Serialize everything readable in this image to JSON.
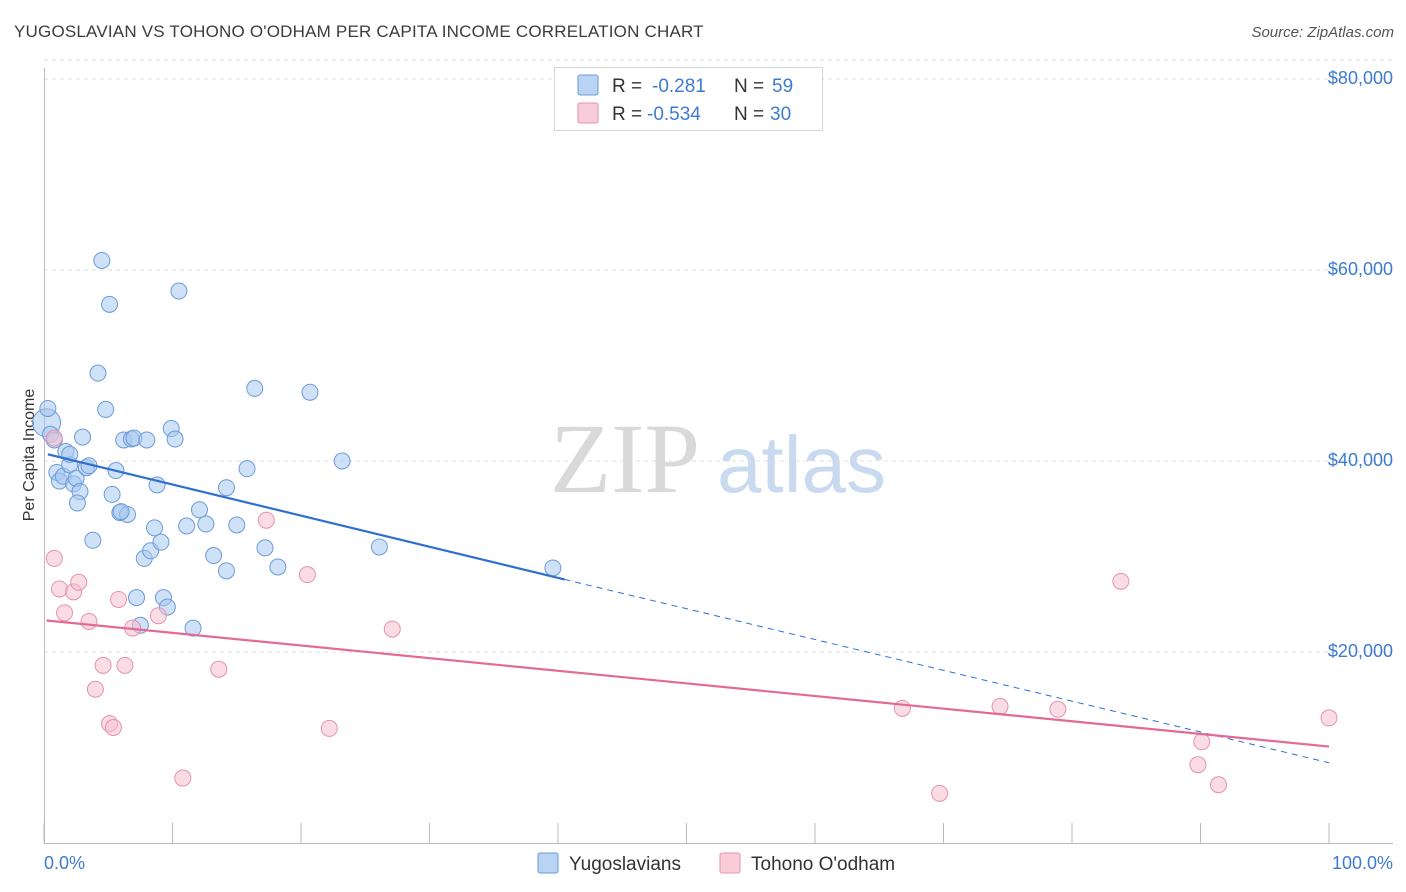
{
  "title": "YUGOSLAVIAN VS TOHONO O'ODHAM PER CAPITA INCOME CORRELATION CHART",
  "source": "Source: ZipAtlas.com",
  "watermark": {
    "zip": "ZIP",
    "atlas": "atlas"
  },
  "colors": {
    "blue_fill": "#a8c8f0",
    "blue_stroke": "#6b9bd8",
    "blue_line": "#2f6fce",
    "pink_fill": "#f6c0d0",
    "pink_stroke": "#e592ae",
    "pink_line": "#e36a95",
    "axis_label": "#3d7bd0",
    "grid": "#dddddd"
  },
  "legend": {
    "r_label": "R =",
    "n_label": "N =",
    "rows": [
      {
        "series": "Yugoslavians",
        "r": "-0.281",
        "n": "59"
      },
      {
        "series": "Tohono O'odham",
        "r": "-0.534",
        "n": "30"
      }
    ]
  },
  "chart_data": {
    "type": "scatter",
    "title": "YUGOSLAVIAN VS TOHONO O'ODHAM PER CAPITA INCOME CORRELATION CHART",
    "xlabel": "",
    "ylabel": "Per Capita Income",
    "xlim": [
      0,
      100
    ],
    "ylim": [
      0,
      82000
    ],
    "x_tick_labels": [
      "0.0%",
      "100.0%"
    ],
    "y_ticks": [
      {
        "value": 20000,
        "label": "$20,000"
      },
      {
        "value": 40000,
        "label": "$40,000"
      },
      {
        "value": 60000,
        "label": "$60,000"
      },
      {
        "value": 80000,
        "label": "$80,000"
      }
    ],
    "series": [
      {
        "name": "Yugoslavians",
        "color": "blue",
        "trend": {
          "x0": 0.3,
          "y0": 40700,
          "x1": 40.5,
          "y1": 27600,
          "dash_to_x": 100,
          "dash_to_y": 8400
        },
        "points": [
          [
            0.2,
            44000
          ],
          [
            0.3,
            45500
          ],
          [
            0.5,
            42800
          ],
          [
            0.8,
            42200
          ],
          [
            1.0,
            38800
          ],
          [
            1.2,
            37900
          ],
          [
            1.5,
            38400
          ],
          [
            1.7,
            41000
          ],
          [
            2.0,
            39600
          ],
          [
            2.3,
            37600
          ],
          [
            2.5,
            38200
          ],
          [
            2.8,
            36800
          ],
          [
            3.0,
            42500
          ],
          [
            3.3,
            39300
          ],
          [
            3.5,
            39500
          ],
          [
            3.8,
            31700
          ],
          [
            4.2,
            49200
          ],
          [
            4.5,
            61000
          ],
          [
            4.8,
            45400
          ],
          [
            5.1,
            56400
          ],
          [
            5.3,
            36500
          ],
          [
            5.6,
            39000
          ],
          [
            5.9,
            34600
          ],
          [
            6.2,
            42200
          ],
          [
            6.5,
            34400
          ],
          [
            6.8,
            42300
          ],
          [
            7.0,
            42400
          ],
          [
            7.2,
            25700
          ],
          [
            7.5,
            22800
          ],
          [
            7.8,
            29800
          ],
          [
            8.0,
            42200
          ],
          [
            8.3,
            30600
          ],
          [
            8.6,
            33000
          ],
          [
            8.8,
            37500
          ],
          [
            9.1,
            31500
          ],
          [
            9.3,
            25700
          ],
          [
            9.6,
            24700
          ],
          [
            9.9,
            43400
          ],
          [
            10.2,
            42300
          ],
          [
            10.5,
            57800
          ],
          [
            11.1,
            33200
          ],
          [
            11.6,
            22500
          ],
          [
            12.1,
            34900
          ],
          [
            14.2,
            28500
          ],
          [
            12.6,
            33400
          ],
          [
            13.2,
            30100
          ],
          [
            14.2,
            37200
          ],
          [
            15.0,
            33300
          ],
          [
            15.8,
            39200
          ],
          [
            16.4,
            47600
          ],
          [
            17.2,
            30900
          ],
          [
            18.2,
            28900
          ],
          [
            20.7,
            47200
          ],
          [
            2.0,
            40700
          ],
          [
            2.6,
            35600
          ],
          [
            23.2,
            40000
          ],
          [
            26.1,
            31000
          ],
          [
            39.6,
            28800
          ],
          [
            6.0,
            34700
          ]
        ]
      },
      {
        "name": "Tohono O'odham",
        "color": "pink",
        "trend": {
          "x0": 0.2,
          "y0": 23300,
          "x1": 100,
          "y1": 10100
        },
        "points": [
          [
            0.8,
            42400
          ],
          [
            0.8,
            29800
          ],
          [
            1.2,
            26600
          ],
          [
            1.6,
            24100
          ],
          [
            2.3,
            26300
          ],
          [
            2.7,
            27300
          ],
          [
            3.5,
            23200
          ],
          [
            4.0,
            16100
          ],
          [
            4.6,
            18600
          ],
          [
            5.1,
            12500
          ],
          [
            5.4,
            12100
          ],
          [
            5.8,
            25500
          ],
          [
            6.3,
            18600
          ],
          [
            6.9,
            22500
          ],
          [
            8.9,
            23800
          ],
          [
            10.8,
            6800
          ],
          [
            13.6,
            18200
          ],
          [
            17.3,
            33800
          ],
          [
            20.5,
            28100
          ],
          [
            22.2,
            12000
          ],
          [
            27.1,
            22400
          ],
          [
            66.8,
            14100
          ],
          [
            69.7,
            5200
          ],
          [
            74.4,
            14300
          ],
          [
            78.9,
            14000
          ],
          [
            83.8,
            27400
          ],
          [
            89.8,
            8200
          ],
          [
            90.1,
            10600
          ],
          [
            91.4,
            6100
          ],
          [
            100.0,
            13100
          ]
        ]
      }
    ]
  }
}
